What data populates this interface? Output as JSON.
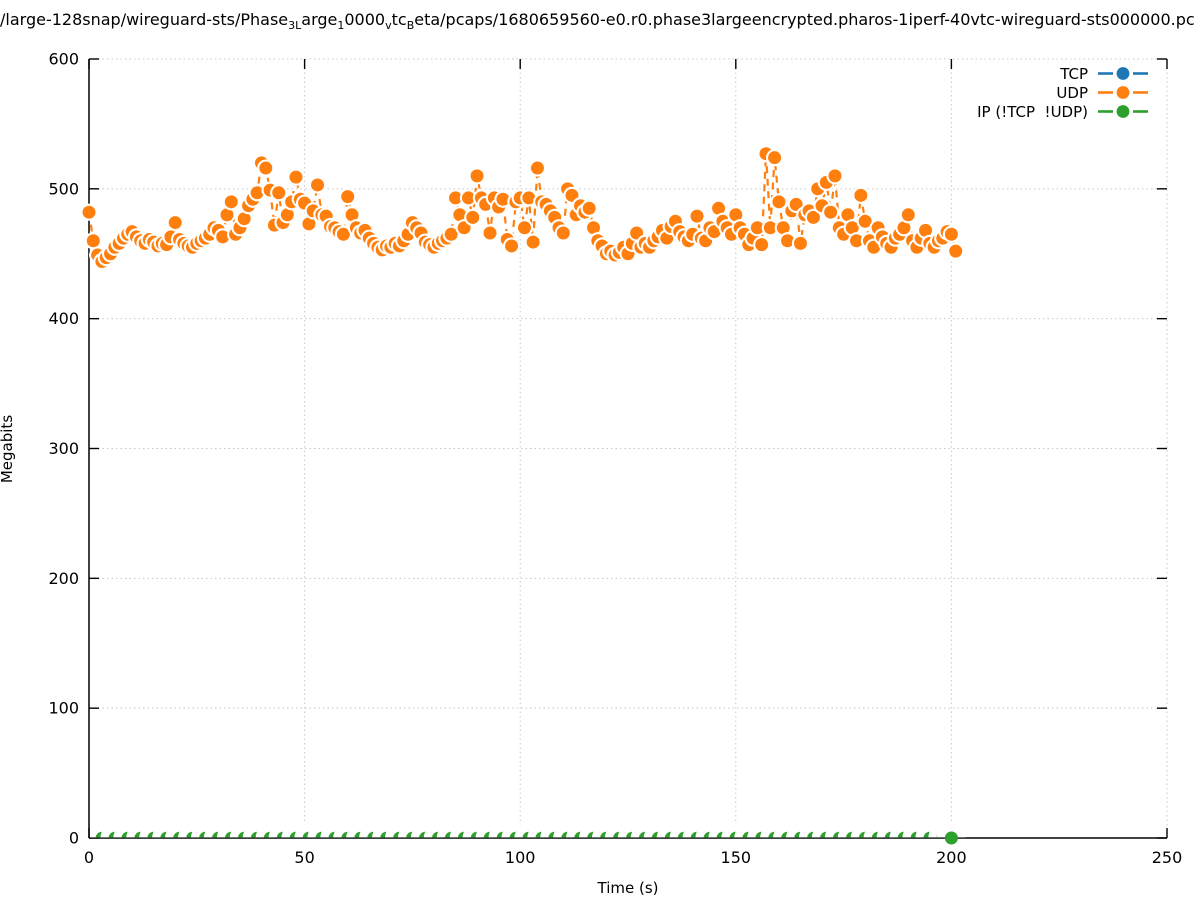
{
  "title": {
    "segments": [
      {
        "text": "/large-128snap/wireguard-sts/Phase"
      },
      {
        "sub": "3"
      },
      {
        "sub": "L"
      },
      {
        "text": "arge"
      },
      {
        "sub": "1"
      },
      {
        "text": "0000"
      },
      {
        "sub": "v"
      },
      {
        "text": "tc"
      },
      {
        "sub": "B"
      },
      {
        "text": "eta/pcaps/1680659560-e0.r0.phase3largeencrypted.pharos-1iperf-40vtc-wireguard-sts000000.pc"
      }
    ]
  },
  "legend": {
    "items": [
      {
        "label": "TCP",
        "color": "#1f77b4"
      },
      {
        "label": "UDP",
        "color": "#ff7f0e"
      },
      {
        "label": "IP (!TCP  !UDP)",
        "color": "#2ca02c"
      }
    ]
  },
  "colors": {
    "tcp": "#1f77b4",
    "udp": "#ff7f0e",
    "ip": "#2ca02c",
    "grid": "#c8c8c8",
    "axis": "#000000",
    "background": "#ffffff"
  },
  "chart_data": {
    "type": "scatter",
    "title_plain": "/large-128snap/wireguard-sts/Phase_3_Large_10000_vtc_Beta/pcaps/1680659560-e0.r0.phase3largeencrypted.pharos-1iperf-40vtc-wireguard-sts000000.pc",
    "xlabel": "Time (s)",
    "ylabel": "Megabits",
    "xlim": [
      0,
      250
    ],
    "ylim": [
      0,
      600
    ],
    "xticks": [
      0,
      50,
      100,
      150,
      200,
      250
    ],
    "yticks": [
      0,
      100,
      200,
      300,
      400,
      500,
      600
    ],
    "grid": true,
    "legend_position": "top-right",
    "series": [
      {
        "name": "TCP",
        "color": "#1f77b4",
        "x": [],
        "y": []
      },
      {
        "name": "UDP",
        "color": "#ff7f0e",
        "x_start": 0,
        "x_step": 1,
        "y": [
          482,
          460,
          449,
          444,
          447,
          450,
          455,
          458,
          462,
          465,
          467,
          463,
          460,
          458,
          461,
          459,
          456,
          458,
          457,
          463,
          474,
          461,
          458,
          456,
          455,
          458,
          460,
          462,
          465,
          470,
          468,
          463,
          480,
          490,
          465,
          470,
          477,
          487,
          492,
          497,
          520,
          516,
          499,
          472,
          497,
          474,
          480,
          490,
          509,
          492,
          489,
          473,
          483,
          503,
          480,
          479,
          471,
          470,
          467,
          465,
          494,
          480,
          470,
          466,
          468,
          462,
          458,
          455,
          453,
          456,
          455,
          458,
          456,
          460,
          465,
          474,
          470,
          466,
          459,
          457,
          455,
          458,
          460,
          462,
          465,
          493,
          480,
          470,
          493,
          478,
          510,
          493,
          488,
          466,
          493,
          486,
          492,
          461,
          456,
          490,
          493,
          470,
          493,
          459,
          516,
          490,
          488,
          483,
          478,
          470,
          466,
          500,
          495,
          480,
          487,
          482,
          485,
          470,
          460,
          456,
          450,
          452,
          449,
          451,
          455,
          450,
          458,
          466,
          455,
          458,
          455,
          460,
          463,
          468,
          462,
          471,
          475,
          467,
          463,
          460,
          465,
          479,
          462,
          460,
          470,
          467,
          485,
          475,
          470,
          465,
          480,
          470,
          465,
          457,
          462,
          470,
          457,
          527,
          470,
          524,
          490,
          470,
          460,
          483,
          488,
          458,
          480,
          483,
          478,
          500,
          487,
          505,
          482,
          510,
          470,
          465,
          480,
          470,
          460,
          495,
          475,
          460,
          455,
          470,
          463,
          458,
          455,
          462,
          465,
          470,
          480,
          460,
          455,
          462,
          468,
          458,
          455,
          460,
          462,
          467,
          465,
          452
        ]
      },
      {
        "name": "IP (!TCP  !UDP)",
        "color": "#2ca02c",
        "x": [
          0,
          3,
          6,
          9,
          12,
          15,
          18,
          21,
          24,
          27,
          30,
          33,
          36,
          39,
          42,
          45,
          48,
          51,
          54,
          57,
          60,
          63,
          66,
          69,
          72,
          75,
          78,
          81,
          84,
          87,
          90,
          93,
          96,
          99,
          102,
          105,
          108,
          111,
          114,
          117,
          120,
          123,
          126,
          129,
          132,
          135,
          138,
          141,
          144,
          147,
          150,
          153,
          156,
          159,
          162,
          165,
          168,
          171,
          174,
          177,
          180,
          183,
          186,
          189,
          192,
          195,
          198,
          200
        ],
        "y_const": 0
      }
    ]
  }
}
